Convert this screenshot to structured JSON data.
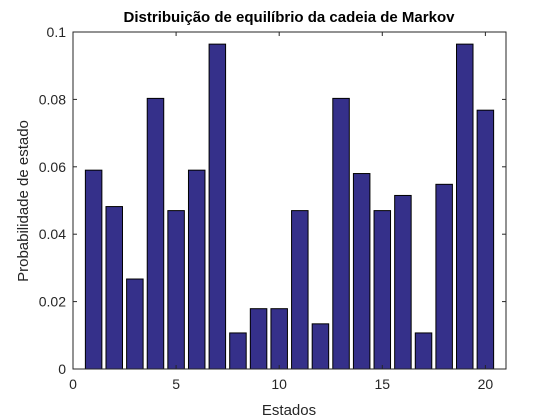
{
  "chart_data": {
    "type": "bar",
    "title": "Distribuição de equilíbrio da cadeia de Markov",
    "xlabel": "Estados",
    "ylabel": "Probabilidade de estado",
    "x": [
      1,
      2,
      3,
      4,
      5,
      6,
      7,
      8,
      9,
      10,
      11,
      12,
      13,
      14,
      15,
      16,
      17,
      18,
      19,
      20
    ],
    "values": [
      0.059,
      0.0482,
      0.0267,
      0.0803,
      0.047,
      0.059,
      0.0964,
      0.0107,
      0.0179,
      0.0179,
      0.047,
      0.0134,
      0.0803,
      0.058,
      0.047,
      0.0515,
      0.0107,
      0.0548,
      0.0964,
      0.0768
    ],
    "xlim": [
      0,
      21
    ],
    "ylim": [
      0,
      0.1
    ],
    "xticks": [
      0,
      5,
      10,
      15,
      20
    ],
    "xtick_labels": [
      "0",
      "5",
      "10",
      "15",
      "20"
    ],
    "yticks": [
      0,
      0.02,
      0.04,
      0.06,
      0.08,
      0.1
    ],
    "ytick_labels": [
      "0",
      "0.02",
      "0.04",
      "0.06",
      "0.08",
      "0.1"
    ],
    "bar_color": "#35308a",
    "grid": false,
    "legend": "none"
  }
}
